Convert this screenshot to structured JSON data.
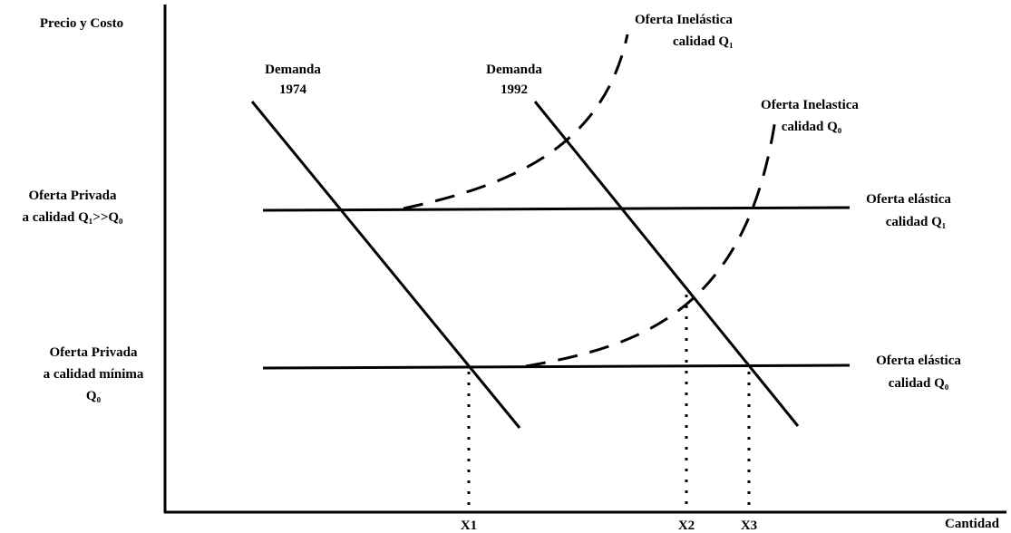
{
  "axes": {
    "y_label": "Precio y  Costo",
    "x_label": "Cantidad"
  },
  "curves": {
    "demand_1974": [
      "Demanda",
      "1974"
    ],
    "demand_1992": [
      "Demanda",
      "1992"
    ],
    "inelastic_q1": [
      "Oferta Inelástica",
      "calidad Q₁"
    ],
    "inelastic_q0": [
      "Oferta Inelastica",
      "calidad Q₀"
    ],
    "elastic_q1": [
      "Oferta elástica",
      "calidad Q₁"
    ],
    "elastic_q0": [
      "Oferta elástica",
      "calidad Q₀"
    ],
    "private_high": [
      "Oferta Privada",
      "a calidad Q₁>>Q₀"
    ],
    "private_min": [
      "Oferta Privada",
      "a calidad mínima",
      "Q₀"
    ]
  },
  "x_marks": [
    "X1",
    "X2",
    "X3"
  ]
}
